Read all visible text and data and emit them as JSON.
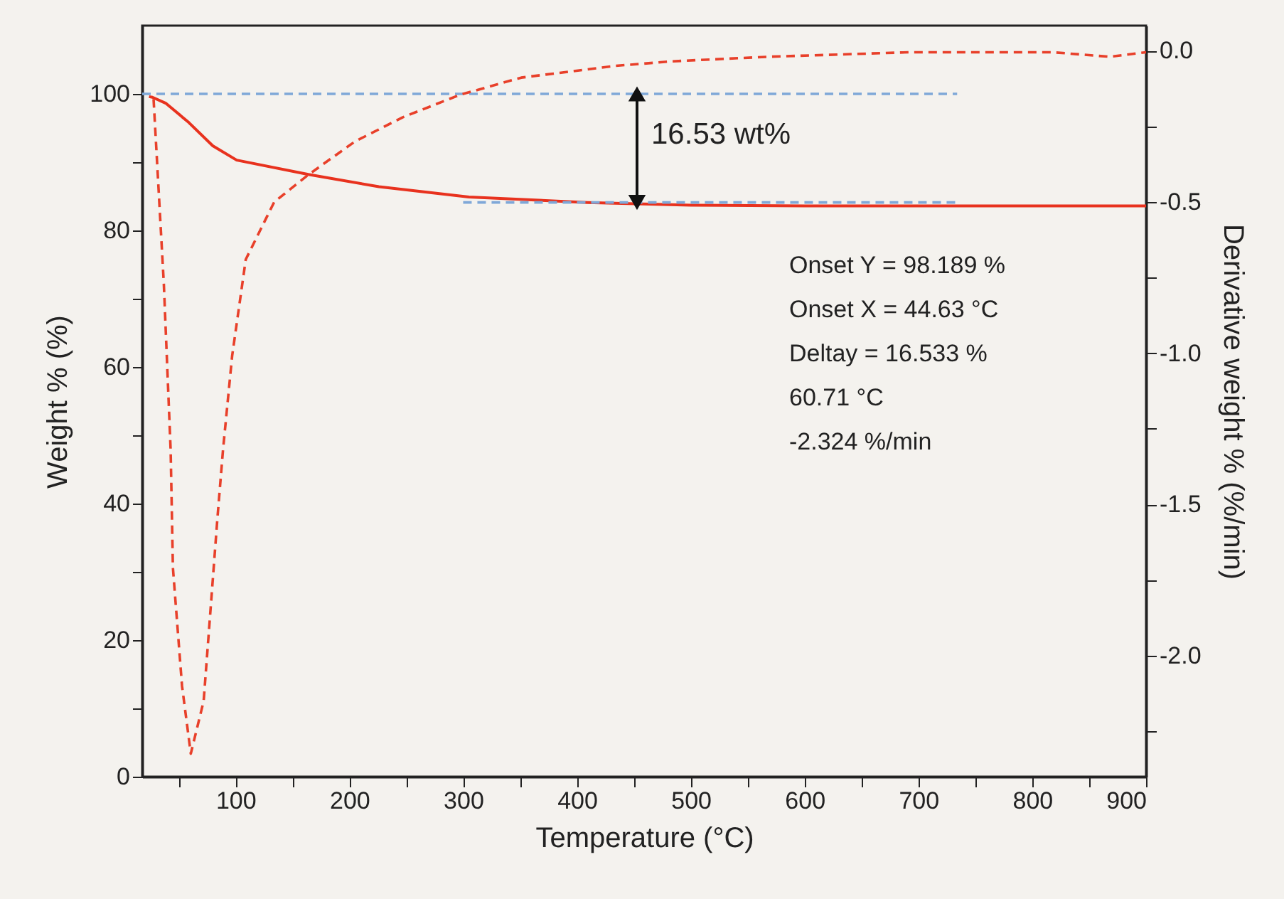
{
  "chart_data": {
    "type": "line",
    "xlabel": "Temperature (°C)",
    "ylabel": "Weight % (%)",
    "y2label": "Derivative weight % (%/min)",
    "xlim": [
      18,
      900
    ],
    "xticks": [
      {
        "value": 50,
        "label": null
      },
      100,
      {
        "value": 150,
        "label": null
      },
      200,
      {
        "value": 250,
        "label": null
      },
      300,
      {
        "value": 350,
        "label": null
      },
      400,
      {
        "value": 450,
        "label": null
      },
      500,
      {
        "value": 550,
        "label": null
      },
      600,
      {
        "value": 650,
        "label": null
      },
      700,
      {
        "value": 750,
        "label": null
      },
      800,
      {
        "value": 850,
        "label": null
      },
      900
    ],
    "ylim": [
      0,
      110
    ],
    "yticks": [
      0,
      {
        "value": 10,
        "label": null
      },
      20,
      {
        "value": 30,
        "label": null
      },
      40,
      {
        "value": 50,
        "label": null
      },
      60,
      {
        "value": 70,
        "label": null
      },
      80,
      {
        "value": 90,
        "label": null
      },
      100
    ],
    "y2lim": [
      -2.4,
      0.083
    ],
    "y2ticks": [
      {
        "value": 0,
        "label": "0.0"
      },
      {
        "value": -0.25,
        "label": null
      },
      {
        "value": -0.5,
        "label": "-0.5"
      },
      {
        "value": -0.75,
        "label": null
      },
      {
        "value": -1.0,
        "label": "-1.0"
      },
      {
        "value": -1.25,
        "label": null
      },
      {
        "value": -1.5,
        "label": "-1.5"
      },
      {
        "value": -1.75,
        "label": null
      },
      {
        "value": -2.0,
        "label": "-2.0"
      },
      {
        "value": -2.25,
        "label": null
      }
    ],
    "grid": false,
    "marker": "none",
    "series": [
      {
        "axis": "y",
        "color": "#e8321e",
        "line_style": "solid",
        "x": [
          24,
          27,
          39,
          59,
          80,
          101,
          164,
          226,
          305,
          409,
          500,
          600,
          700,
          800,
          900
        ],
        "values": [
          99.6,
          99.5,
          98.6,
          95.8,
          92.4,
          90.3,
          88.2,
          86.4,
          84.9,
          84.1,
          83.7,
          83.6,
          83.6,
          83.6,
          83.6
        ]
      },
      {
        "axis": "y2",
        "color": "#e8402a",
        "line_style": "dashed",
        "x": [
          28,
          37,
          43,
          45,
          53,
          60.71,
          72,
          84,
          89,
          97,
          109,
          134,
          164,
          205,
          247,
          297,
          351,
          434,
          484,
          568,
          693,
          818,
          868,
          900
        ],
        "values": [
          -0.16,
          -0.77,
          -1.32,
          -1.71,
          -2.1,
          -2.324,
          -2.15,
          -1.55,
          -1.32,
          -1.01,
          -0.69,
          -0.5,
          -0.41,
          -0.3,
          -0.22,
          -0.146,
          -0.089,
          -0.05,
          -0.035,
          -0.02,
          -0.005,
          -0.005,
          -0.02,
          -0.005
        ]
      },
      {
        "axis": "y",
        "color": "#7fa8d8",
        "line_style": "dashed",
        "x": [
          18,
          734
        ],
        "values": [
          100,
          100
        ]
      },
      {
        "axis": "y",
        "color": "#7fa8d8",
        "line_style": "dashed",
        "x": [
          300,
          734
        ],
        "values": [
          84.1,
          84.1
        ]
      }
    ],
    "annotations": [
      "16.53 wt%",
      "Onset Y = 98.189 %",
      "Onset X = 44.63 °C",
      "Deltay = 16.533 %",
      "60.71 °C",
      "-2.324 %/min"
    ]
  }
}
